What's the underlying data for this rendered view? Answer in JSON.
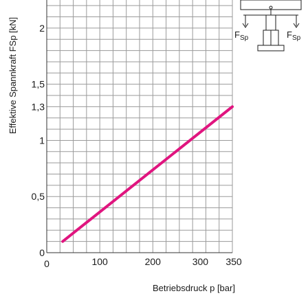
{
  "chart_data": {
    "type": "line",
    "title": "",
    "xlabel": "Betriebsdruck p [bar]",
    "ylabel": "Effektive Spannkraft FSp [kN]",
    "xlim": [
      0,
      350
    ],
    "ylim": [
      0,
      2.25
    ],
    "x_ticks": [
      {
        "value": 0,
        "label": "0"
      },
      {
        "value": 100,
        "label": "100"
      },
      {
        "value": 200,
        "label": "200"
      },
      {
        "value": 300,
        "label": "300"
      },
      {
        "value": 350,
        "label": "350"
      }
    ],
    "y_ticks": [
      {
        "value": 0,
        "label": "0"
      },
      {
        "value": 0.5,
        "label": "0,5"
      },
      {
        "value": 1,
        "label": "1"
      },
      {
        "value": 1.3,
        "label": "1,3"
      },
      {
        "value": 1.5,
        "label": "1,5"
      },
      {
        "value": 2,
        "label": "2"
      }
    ],
    "series": [
      {
        "values": [
          [
            30,
            0.1
          ],
          [
            350,
            1.3
          ]
        ]
      }
    ],
    "grid": true,
    "line_color": "#e0157f",
    "grid_color": "#9a9a9a",
    "inset": {
      "label_left": "F",
      "label_left_sub": "Sp",
      "label_right": "F",
      "label_right_sub": "Sp"
    }
  }
}
